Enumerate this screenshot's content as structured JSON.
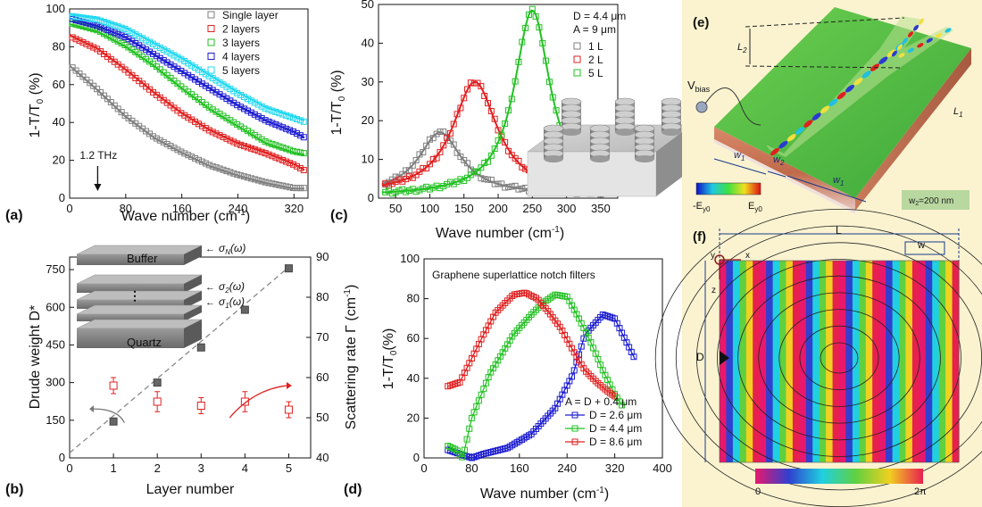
{
  "figure": {
    "panels": {
      "a": {
        "label": "(a)"
      },
      "b": {
        "label": "(b)",
        "inset_layers": [
          "Buffer",
          "Quartz"
        ],
        "inset_sigma": [
          "σ",
          "N",
          "(ω)",
          "σ",
          "2",
          "(ω)",
          "σ",
          "1",
          "(ω)"
        ]
      },
      "c": {
        "label": "(c)",
        "annot": [
          "D = 4.4 μm",
          "A = 9 μm"
        ]
      },
      "d": {
        "label": "(d)",
        "title": "Graphene superlattice notch filters",
        "annot": "A = D + 0.4 μm"
      },
      "e": {
        "label": "(e)",
        "vbias": "V",
        "vbias_sub": "bias",
        "l2": "L",
        "l2_sub": "2",
        "l1": "L",
        "l1_sub": "1",
        "w1a": "w",
        "w1a_sub": "1",
        "w2": "w",
        "w2_sub": "2",
        "w1b": "w",
        "w1b_sub": "1",
        "cbar_min": "-E",
        "cbar_min_sub": "y0",
        "cbar_max": "E",
        "cbar_max_sub": "y0",
        "w2_note": "w",
        "w2_note_sub": "2",
        "w2_note_rest": "=200 nm"
      },
      "f": {
        "label": "(f)",
        "L": "L",
        "w": "w",
        "D": "D",
        "y": "y",
        "x": "x",
        "z": "z",
        "cbar_min": "0",
        "cbar_max": "2π"
      }
    },
    "colors": {
      "gray": "#7f7f7f",
      "red": "#e02020",
      "green": "#22c022",
      "blue": "#1a1ad0",
      "cyan": "#20d8f0",
      "dashed": "#888888"
    }
  },
  "chart_data": [
    {
      "id": "a",
      "type": "scatter",
      "xlabel": "Wave number (cm-1)",
      "ylabel": "1-T/T0 (%)",
      "xlim": [
        0,
        340
      ],
      "ylim": [
        0,
        100
      ],
      "xticks": [
        0,
        80,
        160,
        240,
        320
      ],
      "yticks": [
        0,
        20,
        40,
        60,
        80,
        100
      ],
      "legend_position": "top-right",
      "annotation": {
        "text": "1.2 THz",
        "x": 40
      },
      "series": [
        {
          "name": "Single layer",
          "color": "gray",
          "x": [
            0,
            40,
            80,
            120,
            160,
            200,
            240,
            280,
            320,
            335
          ],
          "y": [
            70,
            57,
            43,
            32,
            24,
            17,
            12,
            8,
            5,
            5
          ]
        },
        {
          "name": "2 layers",
          "color": "red",
          "x": [
            0,
            40,
            80,
            120,
            160,
            200,
            240,
            280,
            320,
            335
          ],
          "y": [
            86,
            79,
            68,
            56,
            45,
            36,
            29,
            24,
            18,
            15
          ]
        },
        {
          "name": "3 layers",
          "color": "green",
          "x": [
            0,
            40,
            80,
            120,
            160,
            200,
            240,
            280,
            320,
            335
          ],
          "y": [
            92,
            88,
            80,
            70,
            58,
            47,
            38,
            29,
            24,
            23
          ]
        },
        {
          "name": "4 layers",
          "color": "blue",
          "x": [
            0,
            40,
            80,
            120,
            160,
            200,
            240,
            280,
            320,
            335
          ],
          "y": [
            95,
            91,
            85,
            76,
            67,
            58,
            49,
            41,
            35,
            32
          ]
        },
        {
          "name": "5 layers",
          "color": "cyan",
          "x": [
            0,
            40,
            80,
            120,
            160,
            200,
            240,
            280,
            320,
            335
          ],
          "y": [
            97,
            95,
            90,
            82,
            74,
            65,
            56,
            48,
            43,
            41
          ]
        }
      ]
    },
    {
      "id": "b",
      "type": "scatter",
      "xlabel": "Layer number",
      "ylabel": "Drude weight D*",
      "y2label": "Scattering rate Γ (cm-1)",
      "xlim": [
        0,
        5.5
      ],
      "ylim": [
        0,
        800
      ],
      "y2lim": [
        40,
        90
      ],
      "xticks": [
        0,
        1,
        2,
        3,
        4,
        5
      ],
      "yticks": [
        0,
        150,
        300,
        450,
        600,
        750
      ],
      "y2ticks": [
        40,
        50,
        60,
        70,
        80,
        90
      ],
      "series": [
        {
          "name": "Drude weight",
          "axis": "left",
          "color": "gray",
          "x": [
            1,
            2,
            3,
            4,
            5
          ],
          "y": [
            145,
            300,
            440,
            590,
            755
          ]
        },
        {
          "name": "Scattering rate",
          "axis": "right",
          "color": "red",
          "x": [
            1,
            2,
            3,
            4,
            5
          ],
          "y": [
            58,
            54,
            53,
            54,
            52
          ],
          "err": [
            2,
            2.5,
            2,
            2.5,
            2
          ]
        }
      ],
      "fit_line": {
        "x": [
          0,
          5
        ],
        "y": [
          20,
          760
        ]
      }
    },
    {
      "id": "c",
      "type": "scatter",
      "xlabel": "Wave number (cm-1)",
      "ylabel": "1-T/T0 (%)",
      "xlim": [
        25,
        375
      ],
      "ylim": [
        0,
        50
      ],
      "xticks": [
        50,
        100,
        150,
        200,
        250,
        300,
        350
      ],
      "yticks": [
        0,
        10,
        20,
        30,
        40,
        50
      ],
      "legend_position": "top-right",
      "series": [
        {
          "name": "1 L",
          "color": "gray",
          "peak_x": 115,
          "peak_y": 16,
          "width": 38,
          "base": 1
        },
        {
          "name": "2 L",
          "color": "red",
          "peak_x": 166,
          "peak_y": 29,
          "width": 40,
          "base": 1
        },
        {
          "name": "5 L",
          "color": "green",
          "peak_x": 250,
          "peak_y": 48,
          "width": 32,
          "base": 0.5
        }
      ]
    },
    {
      "id": "d",
      "type": "line",
      "xlabel": "Wave number (cm-1)",
      "ylabel": "1-T/T0(%)",
      "xlim": [
        0,
        400
      ],
      "ylim": [
        0,
        100
      ],
      "xticks": [
        0,
        80,
        160,
        240,
        320,
        400
      ],
      "yticks": [
        0,
        20,
        40,
        60,
        80,
        100
      ],
      "legend_position": "bottom-right",
      "series": [
        {
          "name": "D = 2.6 μm",
          "color": "blue",
          "x": [
            40,
            60,
            80,
            100,
            140,
            180,
            220,
            250,
            270,
            300,
            320,
            340,
            355
          ],
          "y": [
            4,
            2,
            0,
            2,
            5,
            12,
            25,
            42,
            62,
            72,
            70,
            58,
            49
          ]
        },
        {
          "name": "D = 4.4 μm",
          "color": "green",
          "x": [
            40,
            55,
            65,
            80,
            110,
            150,
            180,
            200,
            220,
            240,
            260,
            280,
            300,
            320,
            333
          ],
          "y": [
            6,
            4,
            0,
            20,
            42,
            62,
            72,
            78,
            82,
            81,
            70,
            58,
            44,
            32,
            26
          ]
        },
        {
          "name": "D = 8.6 μm",
          "color": "red",
          "x": [
            40,
            60,
            80,
            100,
            120,
            150,
            170,
            190,
            210,
            230,
            250,
            270,
            290,
            310,
            320
          ],
          "y": [
            36,
            38,
            50,
            62,
            73,
            82,
            83,
            80,
            73,
            65,
            54,
            44,
            38,
            33,
            31
          ]
        }
      ]
    }
  ]
}
